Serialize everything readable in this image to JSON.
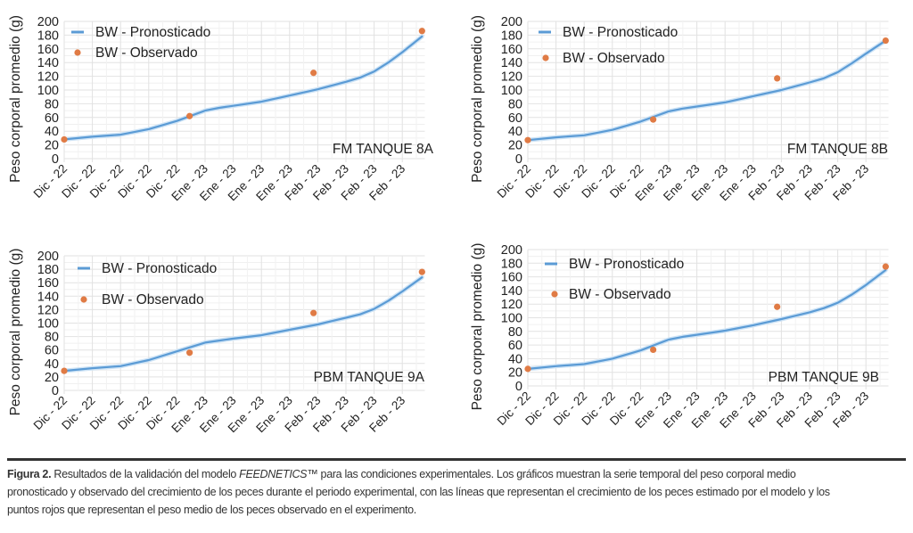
{
  "charts": [
    {
      "panel_label": "FM TANQUE 8A",
      "ylabel": "Peso corporal promedio (g)",
      "legend": {
        "line": "BW - Pronosticado",
        "dot": "BW - Observado"
      },
      "yticks": [
        0,
        20,
        40,
        60,
        80,
        100,
        120,
        140,
        160,
        180,
        200
      ],
      "xticks": [
        "Dic - 22",
        "Dic - 22",
        "Dic - 22",
        "Dic - 22",
        "Dic - 22",
        "Ene - 23",
        "Ene - 23",
        "Ene - 23",
        "Ene - 23",
        "Feb - 23",
        "Feb - 23",
        "Feb - 23",
        "Feb - 23"
      ]
    },
    {
      "panel_label": "FM TANQUE 8B",
      "ylabel": "Peso corporal promedio (g)",
      "legend": {
        "line": "BW - Pronosticado",
        "dot": "BW - Observado"
      },
      "yticks": [
        0,
        20,
        40,
        60,
        80,
        100,
        120,
        140,
        160,
        180,
        200
      ],
      "xticks": [
        "Dic - 22",
        "Dic - 22",
        "Dic - 22",
        "Dic - 22",
        "Dic - 22",
        "Ene - 23",
        "Ene - 23",
        "Ene - 23",
        "Ene - 23",
        "Feb - 23",
        "Feb - 23",
        "Feb - 23",
        "Feb - 23"
      ]
    },
    {
      "panel_label": "PBM TANQUE 9A",
      "ylabel": "Peso corporal promedio (g)",
      "legend": {
        "line": "BW - Pronosticado",
        "dot": "BW - Observado"
      },
      "yticks": [
        0,
        20,
        40,
        60,
        80,
        100,
        120,
        140,
        160,
        180,
        200
      ],
      "xticks": [
        "Dic - 22",
        "Dic - 22",
        "Dic - 22",
        "Dic - 22",
        "Dic - 22",
        "Ene - 23",
        "Ene - 23",
        "Ene - 23",
        "Ene - 23",
        "Feb - 23",
        "Feb - 23",
        "Feb - 23",
        "Feb - 23"
      ]
    },
    {
      "panel_label": "PBM TANQUE 9B",
      "ylabel": "Peso corporal promedio (g)",
      "legend": {
        "line": "BW - Pronosticado",
        "dot": "BW - Observado"
      },
      "yticks": [
        0,
        20,
        40,
        60,
        80,
        100,
        120,
        140,
        160,
        180,
        200
      ],
      "xticks": [
        "Dic - 22",
        "Dic - 22",
        "Dic - 22",
        "Dic - 22",
        "Dic - 22",
        "Ene - 23",
        "Ene - 23",
        "Ene - 23",
        "Ene - 23",
        "Feb - 23",
        "Feb - 23",
        "Feb - 23",
        "Feb - 23"
      ]
    }
  ],
  "colors": {
    "line": "#5b9bd5",
    "dot": "#e07b45",
    "grid": "#e4e4e4"
  },
  "caption": {
    "label": "Figura 2.",
    "text_before": " Resultados de la validación del modelo ",
    "model": "FEEDNETICS™",
    "text_after": " para las condiciones experimentales. Los gráficos muestran la serie temporal del peso corporal medio pronosticado y observado del crecimiento de los peces durante el periodo experimental, con las líneas que representan el crecimiento de los peces estimado por el modelo y los puntos rojos que representan el peso medio de los peces observado en el experimento."
  },
  "chart_data": [
    {
      "type": "line",
      "title": "FM TANQUE 8A",
      "xlabel": "",
      "ylabel": "Peso corporal promedio (g)",
      "ylim": [
        0,
        200
      ],
      "grid": true,
      "legend_position": "top-left",
      "categories": [
        "Dic - 22",
        "Dic - 22",
        "Dic - 22",
        "Dic - 22",
        "Dic - 22",
        "Ene - 23",
        "Ene - 23",
        "Ene - 23",
        "Ene - 23",
        "Feb - 23",
        "Feb - 23",
        "Feb - 23",
        "Feb - 23"
      ],
      "series": [
        {
          "name": "BW - Pronosticado",
          "kind": "line",
          "x": [
            0,
            1,
            2,
            3,
            4,
            5,
            5.5,
            6,
            7,
            8,
            9,
            10,
            10.5,
            11,
            11.5,
            12,
            12.7
          ],
          "values": [
            28,
            32,
            35,
            43,
            55,
            70,
            74,
            77,
            83,
            92,
            101,
            112,
            118,
            127,
            140,
            155,
            178
          ]
        },
        {
          "name": "BW - Observado",
          "kind": "scatter",
          "x": [
            0,
            4.45,
            8.85,
            12.7
          ],
          "values": [
            28,
            62,
            125,
            186
          ]
        }
      ]
    },
    {
      "type": "line",
      "title": "FM TANQUE 8B",
      "xlabel": "",
      "ylabel": "Peso corporal promedio (g)",
      "ylim": [
        0,
        200
      ],
      "grid": true,
      "legend_position": "top-left",
      "categories": [
        "Dic - 22",
        "Dic - 22",
        "Dic - 22",
        "Dic - 22",
        "Dic - 22",
        "Ene - 23",
        "Ene - 23",
        "Ene - 23",
        "Ene - 23",
        "Feb - 23",
        "Feb - 23",
        "Feb - 23",
        "Feb - 23"
      ],
      "series": [
        {
          "name": "BW - Pronosticado",
          "kind": "line",
          "x": [
            0,
            1,
            2,
            3,
            4,
            5,
            5.5,
            6,
            7,
            8,
            9,
            10,
            10.5,
            11,
            11.5,
            12,
            12.7
          ],
          "values": [
            27,
            31,
            34,
            42,
            54,
            69,
            73,
            76,
            82,
            91,
            100,
            111,
            117,
            126,
            139,
            153,
            172
          ]
        },
        {
          "name": "BW - Observado",
          "kind": "scatter",
          "x": [
            0,
            4.45,
            8.85,
            12.7
          ],
          "values": [
            27,
            57,
            117,
            172
          ]
        }
      ]
    },
    {
      "type": "line",
      "title": "PBM TANQUE 9A",
      "xlabel": "",
      "ylabel": "Peso corporal promedio (g)",
      "ylim": [
        0,
        200
      ],
      "grid": true,
      "legend_position": "top-left",
      "categories": [
        "Dic - 22",
        "Dic - 22",
        "Dic - 22",
        "Dic - 22",
        "Dic - 22",
        "Ene - 23",
        "Ene - 23",
        "Ene - 23",
        "Ene - 23",
        "Feb - 23",
        "Feb - 23",
        "Feb - 23",
        "Feb - 23"
      ],
      "series": [
        {
          "name": "BW - Pronosticado",
          "kind": "line",
          "x": [
            0,
            1,
            2,
            3,
            4,
            5,
            5.5,
            6,
            7,
            8,
            9,
            10,
            10.5,
            11,
            11.5,
            12,
            12.7
          ],
          "values": [
            29,
            33,
            36,
            45,
            58,
            71,
            74,
            77,
            82,
            90,
            98,
            108,
            113,
            121,
            133,
            147,
            168
          ]
        },
        {
          "name": "BW - Observado",
          "kind": "scatter",
          "x": [
            0,
            4.45,
            8.85,
            12.7
          ],
          "values": [
            29,
            56,
            115,
            176
          ]
        }
      ]
    },
    {
      "type": "line",
      "title": "PBM TANQUE 9B",
      "xlabel": "",
      "ylabel": "Peso corporal promedio (g)",
      "ylim": [
        0,
        200
      ],
      "grid": true,
      "legend_position": "top-left",
      "categories": [
        "Dic - 22",
        "Dic - 22",
        "Dic - 22",
        "Dic - 22",
        "Dic - 22",
        "Ene - 23",
        "Ene - 23",
        "Ene - 23",
        "Ene - 23",
        "Feb - 23",
        "Feb - 23",
        "Feb - 23",
        "Feb - 23"
      ],
      "series": [
        {
          "name": "BW - Pronosticado",
          "kind": "line",
          "x": [
            0,
            1,
            2,
            3,
            4,
            5,
            5.5,
            6,
            7,
            8,
            9,
            10,
            10.5,
            11,
            11.5,
            12,
            12.7
          ],
          "values": [
            25,
            29,
            32,
            40,
            52,
            68,
            72,
            75,
            81,
            89,
            98,
            108,
            114,
            122,
            134,
            148,
            170
          ]
        },
        {
          "name": "BW - Observado",
          "kind": "scatter",
          "x": [
            0,
            4.45,
            8.85,
            12.7
          ],
          "values": [
            25,
            53,
            116,
            175
          ]
        }
      ]
    }
  ]
}
